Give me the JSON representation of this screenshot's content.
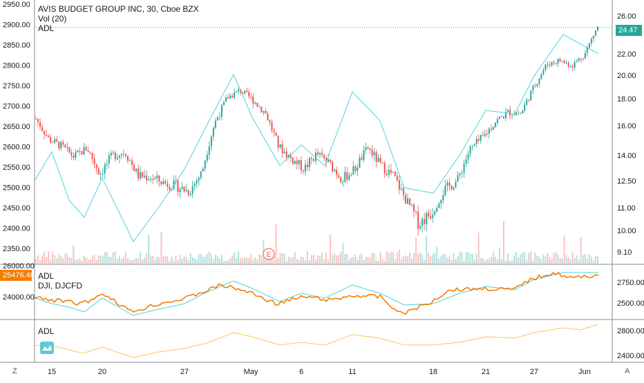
{
  "header": {
    "title": "AVIS BUDGET GROUP INC, 30, Cboe BZX",
    "vol": "Vol (20)",
    "adl": "ADL"
  },
  "panel2": {
    "adl": "ADL",
    "symbols": "DJI, DJCFD"
  },
  "panel3": {
    "adl": "ADL"
  },
  "price_tag": {
    "value": "24.47",
    "color": "#26a69a"
  },
  "dji_tag": {
    "value": "25476.40",
    "color": "#f57c00"
  },
  "dji_partial_top": "26000.00",
  "event_marker": "E",
  "bottom_left_btn": "Z",
  "bottom_right_btn": "A",
  "colors": {
    "up": "#26a69a",
    "down": "#ef5350",
    "adl_line": "#4dd0e1",
    "dji_line": "#f57c00",
    "panel3_line": "#ffc35a"
  },
  "chart_data": {
    "type": "candlestick",
    "left_axis_ticks": [
      "2950.00",
      "2900.00",
      "2850.00",
      "2800.00",
      "2750.00",
      "2700.00",
      "2650.00",
      "2600.00",
      "2550.00",
      "2500.00",
      "2450.00",
      "2400.00",
      "2350.00"
    ],
    "right_axis_ticks": [
      "26.00",
      "24.00",
      "22.00",
      "20.00",
      "18.00",
      "16.00",
      "14.00",
      "12.50",
      "11.00",
      "10.00",
      "9.10"
    ],
    "panel2_left_ticks": [
      "24000.00"
    ],
    "panel2_right_ticks": [
      "2750.00",
      "2500.00"
    ],
    "panel3_right_ticks": [
      "2800.00",
      "2400.00"
    ],
    "x_ticks": [
      "15",
      "20",
      "27",
      "May",
      "6",
      "11",
      "18",
      "21",
      "27",
      "Jun"
    ],
    "price_path": [
      [
        "15",
        16.5
      ],
      [
        "",
        15.1
      ],
      [
        "",
        14.6
      ],
      [
        "",
        13.9
      ],
      [
        "",
        14.5
      ],
      [
        "",
        12.9
      ],
      [
        "20",
        14.0
      ],
      [
        "",
        14.2
      ],
      [
        "",
        12.8
      ],
      [
        "",
        12.7
      ],
      [
        "",
        12.4
      ],
      [
        "",
        12.2
      ],
      [
        "",
        11.9
      ],
      [
        "27",
        13.0
      ],
      [
        "",
        16.2
      ],
      [
        "",
        18.1
      ],
      [
        "",
        18.7
      ],
      [
        "",
        17.9
      ],
      [
        "May",
        16.9
      ],
      [
        "",
        14.6
      ],
      [
        "",
        13.8
      ],
      [
        "",
        13.2
      ],
      [
        "6",
        14.1
      ],
      [
        "",
        13.5
      ],
      [
        "",
        12.6
      ],
      [
        "",
        13.2
      ],
      [
        "11",
        14.5
      ],
      [
        "",
        13.4
      ],
      [
        "",
        12.8
      ],
      [
        "",
        11.4
      ],
      [
        "",
        10.3
      ],
      [
        "18",
        10.8
      ],
      [
        "",
        12.0
      ],
      [
        "",
        12.5
      ],
      [
        "",
        14.4
      ],
      [
        "",
        15.2
      ],
      [
        "21",
        16.3
      ],
      [
        "",
        17.0
      ],
      [
        "",
        16.9
      ],
      [
        "",
        19.0
      ],
      [
        "27",
        21.0
      ],
      [
        "",
        21.4
      ],
      [
        "",
        20.9
      ],
      [
        "Jun",
        22.0
      ],
      [
        "",
        24.47
      ]
    ]
  }
}
